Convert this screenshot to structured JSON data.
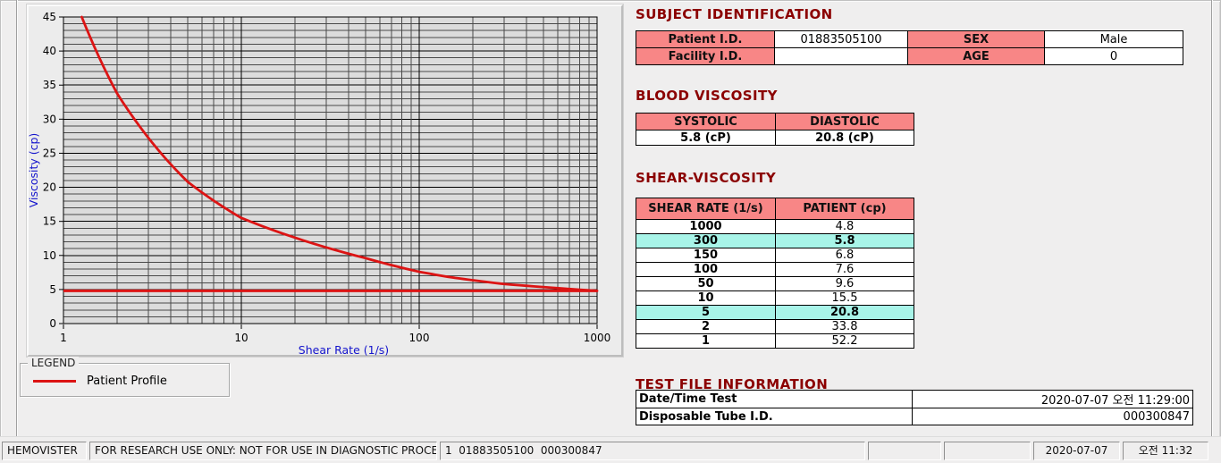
{
  "colors": {
    "section_title": "#8b0000",
    "table_header_pink": "#f88686",
    "highlight_cyan": "#a8f4e8",
    "series_red": "#dc1414",
    "axis_label_blue": "#1414cc",
    "plot_background": "#dcdcdc"
  },
  "chart_data": {
    "type": "line",
    "x_scale": "log",
    "xlabel": "Shear Rate (1/s)",
    "ylabel": "Viscosity (cp)",
    "xlim": [
      1,
      1000
    ],
    "ylim": [
      0,
      45
    ],
    "x_ticks": [
      1,
      10,
      100,
      1000
    ],
    "y_tick_step": 5,
    "y_minor_step": 1,
    "grid": true,
    "legend_position": "below-left",
    "series": [
      {
        "name": "Patient Profile",
        "points": [
          [
            1,
            52.2
          ],
          [
            2,
            33.8
          ],
          [
            5,
            20.8
          ],
          [
            10,
            15.5
          ],
          [
            50,
            9.6
          ],
          [
            100,
            7.6
          ],
          [
            150,
            6.8
          ],
          [
            300,
            5.8
          ],
          [
            1000,
            4.8
          ]
        ]
      },
      {
        "name": "reference-line",
        "y_const": 4.8,
        "x_range": [
          1,
          1000
        ]
      }
    ]
  },
  "legend": {
    "title": "LEGEND",
    "series": [
      "Patient Profile"
    ]
  },
  "subject_identification": {
    "title": "SUBJECT IDENTIFICATION",
    "patient_id_label": "Patient I.D.",
    "patient_id": "01883505100",
    "sex_label": "SEX",
    "sex": "Male",
    "facility_id_label": "Facility I.D.",
    "facility_id": "",
    "age_label": "AGE",
    "age": "0"
  },
  "blood_viscosity": {
    "title": "BLOOD VISCOSITY",
    "systolic_label": "SYSTOLIC",
    "systolic_value": "5.8 (cP)",
    "diastolic_label": "DIASTOLIC",
    "diastolic_value": "20.8 (cP)"
  },
  "shear_viscosity": {
    "title": "SHEAR-VISCOSITY",
    "col_shear": "SHEAR RATE (1/s)",
    "col_patient": "PATIENT (cp)",
    "rows": [
      {
        "shear": "1000",
        "patient": "4.8",
        "highlight": false
      },
      {
        "shear": "300",
        "patient": "5.8",
        "highlight": true
      },
      {
        "shear": "150",
        "patient": "6.8",
        "highlight": false
      },
      {
        "shear": "100",
        "patient": "7.6",
        "highlight": false
      },
      {
        "shear": "50",
        "patient": "9.6",
        "highlight": false
      },
      {
        "shear": "10",
        "patient": "15.5",
        "highlight": false
      },
      {
        "shear": "5",
        "patient": "20.8",
        "highlight": true
      },
      {
        "shear": "2",
        "patient": "33.8",
        "highlight": false
      },
      {
        "shear": "1",
        "patient": "52.2",
        "highlight": false
      }
    ]
  },
  "test_file_information": {
    "title": "TEST FILE INFORMATION",
    "date_label": "Date/Time Test",
    "date_value": "2020-07-07   오전 11:29:00",
    "tube_label": "Disposable Tube I.D.",
    "tube_value": "000300847"
  },
  "status_bar": {
    "panels": [
      "HEMOVISTER",
      "FOR RESEARCH USE ONLY: NOT FOR USE IN DIAGNOSTIC PROCEDURES",
      "1  01883505100  000300847",
      "",
      "",
      "2020-07-07",
      "오전 11:32"
    ]
  }
}
